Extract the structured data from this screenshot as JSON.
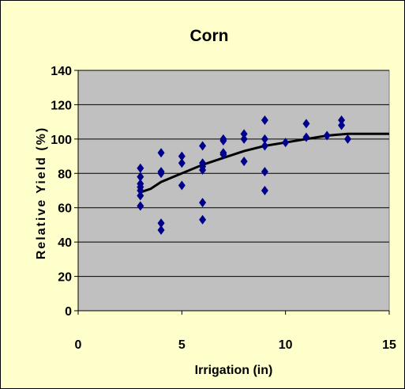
{
  "chart_data": {
    "type": "scatter",
    "title": "Corn",
    "xlabel": "Irrigation (in)",
    "ylabel": "Relative Yield (%)",
    "xlim": [
      0,
      15
    ],
    "ylim": [
      0,
      140
    ],
    "x_ticks": [
      0,
      5,
      10,
      15
    ],
    "y_ticks": [
      0,
      20,
      40,
      60,
      80,
      100,
      120,
      140
    ],
    "grid": "horizontal",
    "legend": "none",
    "colors": {
      "background": "#ffffcc",
      "plot_area": "#c0c0c0",
      "marker": "#00008b",
      "trendline": "#000000"
    },
    "series": [
      {
        "type": "scatter",
        "marker": "diamond",
        "x": [
          3,
          3,
          3,
          3,
          3,
          3,
          3,
          4,
          4,
          4,
          4,
          4,
          5,
          5,
          5,
          6,
          6,
          6,
          6,
          6,
          6,
          7,
          7,
          7,
          7,
          8,
          8,
          8,
          9,
          9,
          9,
          9,
          9,
          10,
          11,
          11,
          12,
          12.7,
          12.7,
          13
        ],
        "y": [
          83,
          78,
          74,
          72,
          70,
          67,
          61,
          92,
          81,
          80,
          51,
          47,
          90,
          86,
          73,
          96,
          86,
          84,
          82,
          63,
          53,
          100,
          99,
          92,
          91,
          103,
          100,
          87,
          111,
          100,
          96,
          81,
          70,
          98,
          109,
          101,
          102,
          111,
          108,
          100
        ]
      },
      {
        "type": "line",
        "x": [
          3,
          3.5,
          4,
          5,
          6,
          7,
          8,
          9,
          10,
          11,
          12,
          13,
          14,
          15
        ],
        "y": [
          69,
          71,
          75,
          80,
          85,
          89,
          93,
          96,
          98,
          100,
          102,
          103,
          103,
          103
        ]
      }
    ]
  }
}
